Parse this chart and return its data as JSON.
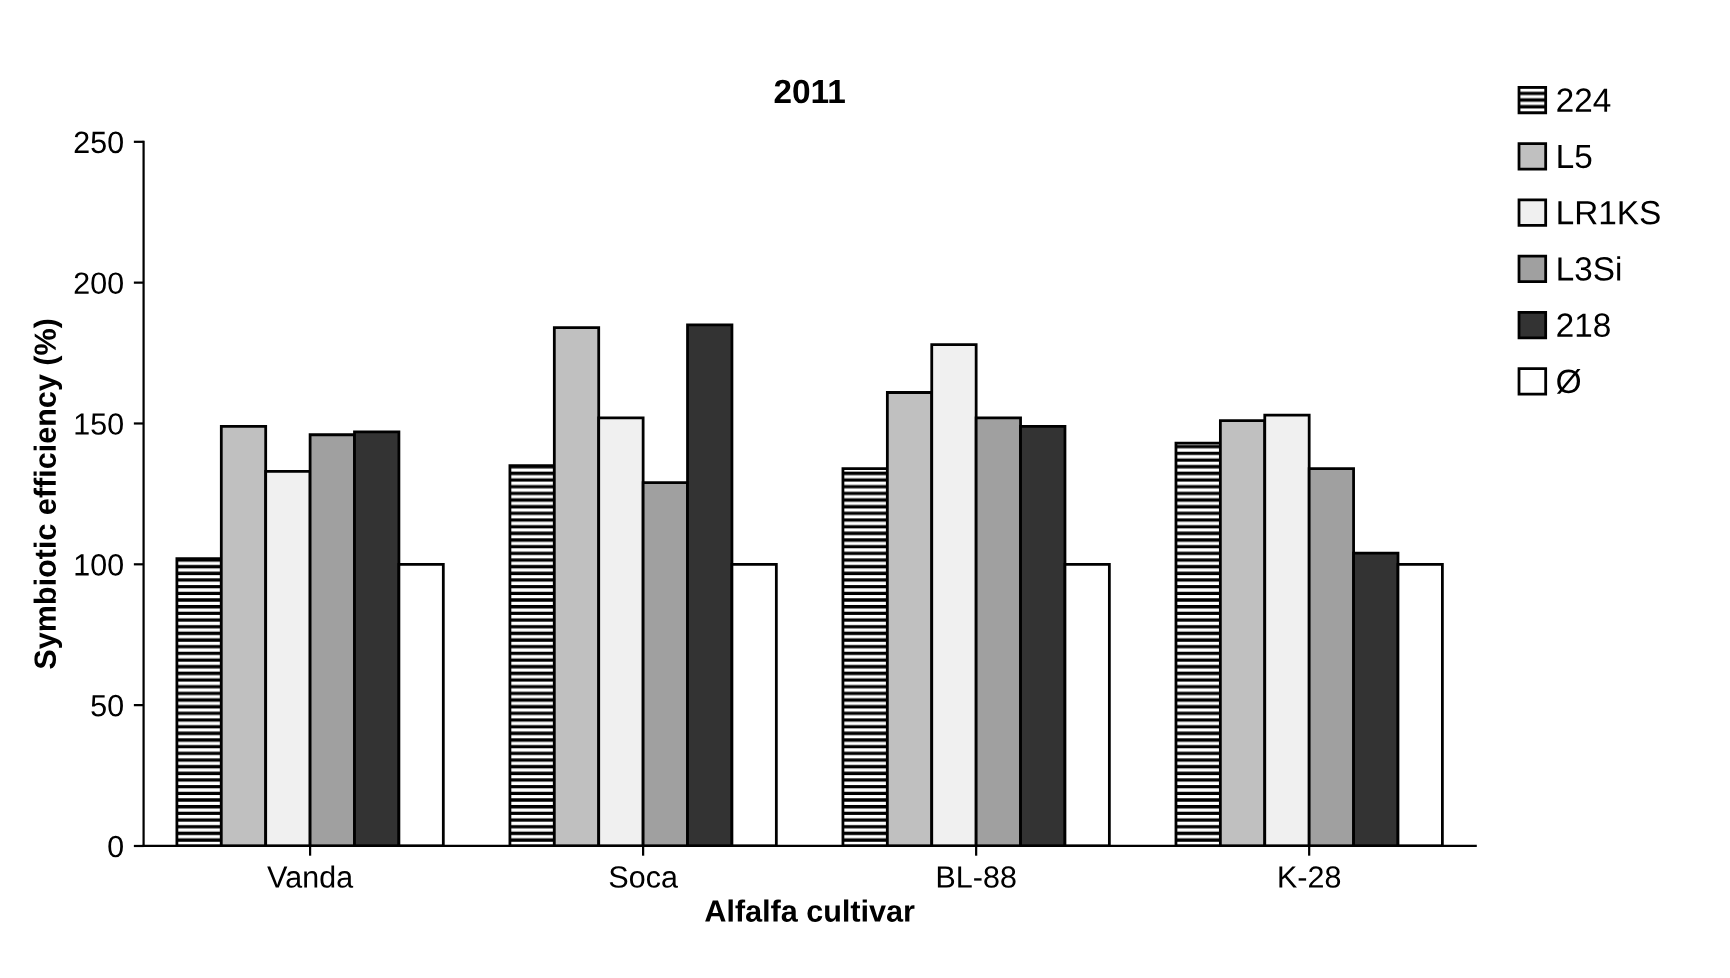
{
  "chart_data": {
    "type": "bar",
    "title": "2011",
    "xlabel": "Alfalfa cultivar",
    "ylabel": "Symbiotic efficiency (%)",
    "categories": [
      "Vanda",
      "Soca",
      "BL-88",
      "K-28"
    ],
    "series": [
      {
        "name": "224",
        "color": "#000000",
        "values": [
          102,
          135,
          134,
          143
        ]
      },
      {
        "name": "L5",
        "color": "#c0c0c0",
        "values": [
          149,
          184,
          161,
          151
        ]
      },
      {
        "name": "LR1KS",
        "color": "#f0f0f0",
        "values": [
          133,
          152,
          178,
          153
        ]
      },
      {
        "name": "L3Si",
        "color": "#a0a0a0",
        "values": [
          146,
          129,
          152,
          134
        ]
      },
      {
        "name": "218",
        "color": "#333333",
        "values": [
          147,
          185,
          149,
          104
        ]
      },
      {
        "name": "Ø",
        "color": "#ffffff",
        "values": [
          100,
          100,
          100,
          100
        ]
      }
    ],
    "ylim": [
      0,
      250
    ],
    "yticks": [
      0,
      50,
      100,
      150,
      200,
      250
    ],
    "grid": false,
    "legend": "right"
  }
}
